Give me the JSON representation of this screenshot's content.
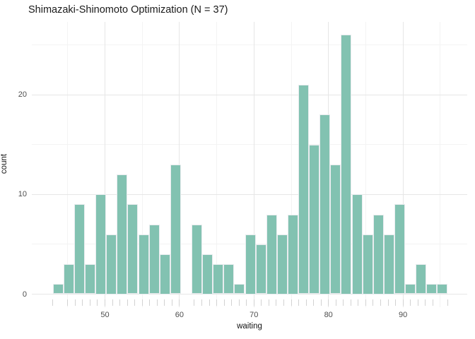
{
  "title": "Shimazaki-Shinomoto Optimization (N = 37)",
  "chart_data": {
    "type": "bar",
    "subtype": "histogram",
    "title": "Shimazaki-Shinomoto Optimization (N = 37)",
    "xlabel": "waiting",
    "ylabel": "count",
    "n_bins": 37,
    "bin_start": 43,
    "bin_width": 1.43243,
    "counts": [
      1,
      3,
      9,
      3,
      10,
      6,
      12,
      9,
      6,
      7,
      4,
      13,
      0,
      7,
      4,
      3,
      3,
      1,
      6,
      5,
      8,
      6,
      8,
      21,
      15,
      18,
      13,
      26,
      10,
      6,
      8,
      6,
      9,
      1,
      3,
      1,
      1
    ],
    "total_count": 272,
    "x_ticks": [
      50,
      60,
      70,
      80,
      90
    ],
    "x_minor_ticks": [
      45,
      55,
      65,
      75,
      85,
      95
    ],
    "y_ticks": [
      0,
      10,
      20
    ],
    "y_minor_ticks": [
      5,
      15,
      25
    ],
    "xlim": [
      40.2,
      98.6
    ],
    "ylim": [
      -1.3,
      27.3
    ],
    "rug_values": [
      43,
      45,
      46,
      47,
      48,
      49,
      50,
      51,
      52,
      53,
      54,
      55,
      56,
      57,
      58,
      59,
      60,
      62,
      63,
      64,
      65,
      66,
      67,
      68,
      69,
      70,
      71,
      72,
      73,
      74,
      75,
      76,
      77,
      78,
      79,
      80,
      81,
      82,
      83,
      84,
      85,
      86,
      87,
      88,
      89,
      90,
      91,
      92,
      93,
      94,
      96
    ],
    "grid": true,
    "legend": false,
    "colors": {
      "bar_fill": "#82c2b1",
      "bar_border": "#e9ecef",
      "grid_major": "#e6e6e6",
      "grid_minor": "#f3f3f3",
      "rug": "#d2d2d2",
      "tick_text": "#4d4d4d",
      "axis_title_text": "#111111",
      "title_text": "#1a1a1a",
      "background": "#ffffff"
    }
  }
}
